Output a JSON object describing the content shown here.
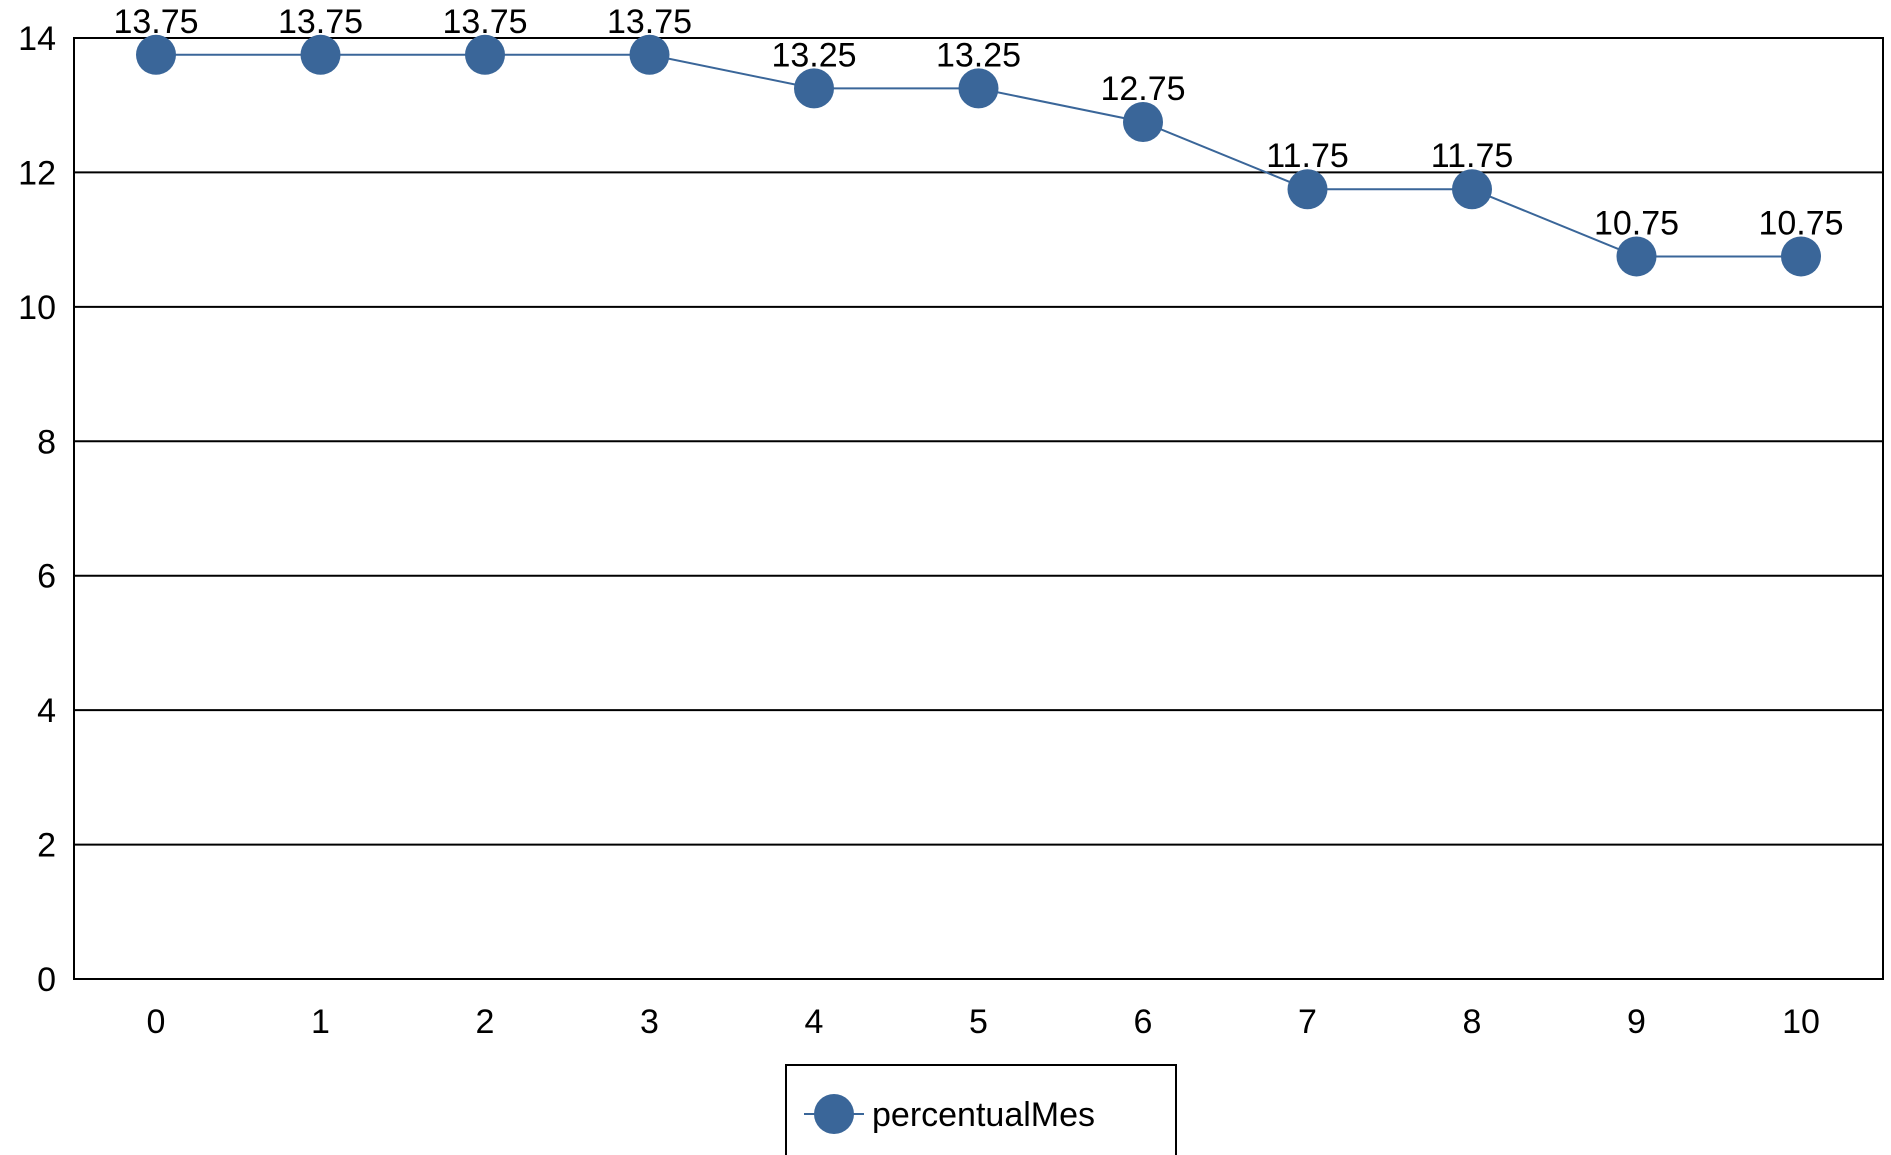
{
  "chart_data": {
    "type": "line",
    "title": "",
    "xlabel": "",
    "ylabel": "",
    "x": [
      0,
      1,
      2,
      3,
      4,
      5,
      6,
      7,
      8,
      9,
      10
    ],
    "xticks": [
      "0",
      "1",
      "2",
      "3",
      "4",
      "5",
      "6",
      "7",
      "8",
      "9",
      "10"
    ],
    "yticks": [
      "0",
      "2",
      "4",
      "6",
      "8",
      "10",
      "12",
      "14"
    ],
    "ylim": [
      0,
      14
    ],
    "grid": "horizontal",
    "legend_position": "bottom",
    "series": [
      {
        "name": "percentualMes",
        "values": [
          13.75,
          13.75,
          13.75,
          13.75,
          13.25,
          13.25,
          12.75,
          11.75,
          11.75,
          10.75,
          10.75
        ],
        "labels": [
          "13.75",
          "13.75",
          "13.75",
          "13.75",
          "13.25",
          "13.25",
          "12.75",
          "11.75",
          "11.75",
          "10.75",
          "10.75"
        ],
        "color": "#3a6699"
      }
    ]
  }
}
